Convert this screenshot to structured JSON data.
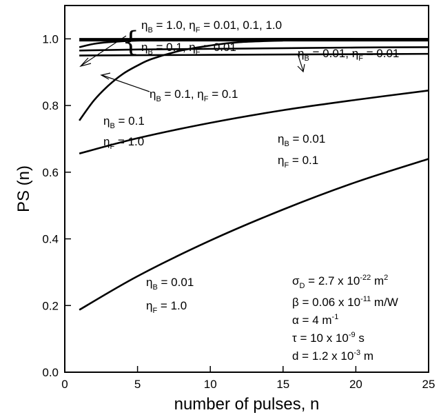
{
  "chart_data": {
    "type": "line",
    "xlabel": "number of pulses, n",
    "ylabel": "PS (n)",
    "xlim": [
      0,
      25
    ],
    "ylim": [
      0.0,
      1.1
    ],
    "x_ticks": [
      "0",
      "5",
      "10",
      "15",
      "20",
      "25"
    ],
    "y_ticks": [
      "0.0",
      "0.2",
      "0.4",
      "0.6",
      "0.8",
      "1.0"
    ],
    "grid": false,
    "series": [
      {
        "x": [
          1,
          5,
          10,
          15,
          20,
          25
        ],
        "values": [
          1.0,
          1.0,
          1.0,
          1.0,
          1.0,
          1.0
        ]
      },
      {
        "x": [
          1,
          5,
          10,
          15,
          20,
          25
        ],
        "values": [
          0.995,
          0.995,
          0.995,
          0.995,
          0.995,
          0.995
        ]
      },
      {
        "x": [
          1,
          2,
          3,
          5,
          7,
          10,
          12,
          15,
          20,
          25
        ],
        "values": [
          0.975,
          0.985,
          0.99,
          0.995,
          0.997,
          0.998,
          0.999,
          1.0,
          1.0,
          1.0
        ]
      },
      {
        "x": [
          1,
          5,
          10,
          15,
          20,
          25
        ],
        "values": [
          0.965,
          0.968,
          0.97,
          0.972,
          0.974,
          0.975
        ]
      },
      {
        "x": [
          1,
          2,
          3,
          4,
          5,
          6,
          8,
          10,
          12,
          15
        ],
        "values": [
          0.755,
          0.815,
          0.86,
          0.895,
          0.92,
          0.94,
          0.965,
          0.98,
          0.99,
          0.995
        ]
      },
      {
        "x": [
          1,
          5,
          10,
          15,
          20,
          25
        ],
        "values": [
          0.95,
          0.951,
          0.952,
          0.953,
          0.954,
          0.955
        ]
      },
      {
        "x": [
          1,
          5,
          10,
          15,
          20,
          25
        ],
        "values": [
          0.656,
          0.702,
          0.748,
          0.786,
          0.817,
          0.845
        ]
      },
      {
        "x": [
          1,
          5,
          10,
          15,
          20,
          25
        ],
        "values": [
          0.187,
          0.288,
          0.395,
          0.488,
          0.57,
          0.64
        ]
      }
    ],
    "annotations": {
      "a1_line1": {
        "p1": "η",
        "s1": "B",
        "p2": " = 1.0, η",
        "s2": "F",
        "p3": " = 0.01, 0.1, 1.0"
      },
      "a1_line2": {
        "p1": "η",
        "s1": "B",
        "p2": " = 0.1, η",
        "s2": "F",
        "p3": " = 0.01"
      },
      "a2": {
        "p1": "η",
        "s1": "B",
        "p2": " = 0.01, η",
        "s2": "F",
        "p3": " = 0.01"
      },
      "a3": {
        "p1": "η",
        "s1": "B",
        "p2": " = 0.1, η",
        "s2": "F",
        "p3": " = 0.1"
      },
      "a4_line1": {
        "p1": "η",
        "s1": "B",
        "p2": " = 0.1"
      },
      "a4_line2": {
        "p1": "η",
        "s1": "F",
        "p2": " = 1.0"
      },
      "a5_line1": {
        "p1": "η",
        "s1": "B",
        "p2": " = 0.01"
      },
      "a5_line2": {
        "p1": "η",
        "s1": "F",
        "p2": " = 0.1"
      },
      "a6_line1": {
        "p1": "η",
        "s1": "B",
        "p2": " = 0.01"
      },
      "a6_line2": {
        "p1": "η",
        "s1": "F",
        "p2": " = 1.0"
      }
    },
    "parameters": {
      "sigma": {
        "p1": "σ",
        "s1": "D",
        "p2": " = 2.7 x 10",
        "e1": "-22",
        "p3": " m",
        "e2": "2"
      },
      "beta": {
        "p1": "β = 0.06 x 10",
        "e1": "-11",
        "p2": " m/W"
      },
      "alpha": {
        "p1": "α = 4 m",
        "e1": "-1"
      },
      "tau": {
        "p1": "τ = 10 x 10",
        "e1": "-9",
        "p2": " s"
      },
      "d": {
        "p1": "d = 1.2 x 10",
        "e1": "-3",
        "p2": " m"
      }
    }
  }
}
